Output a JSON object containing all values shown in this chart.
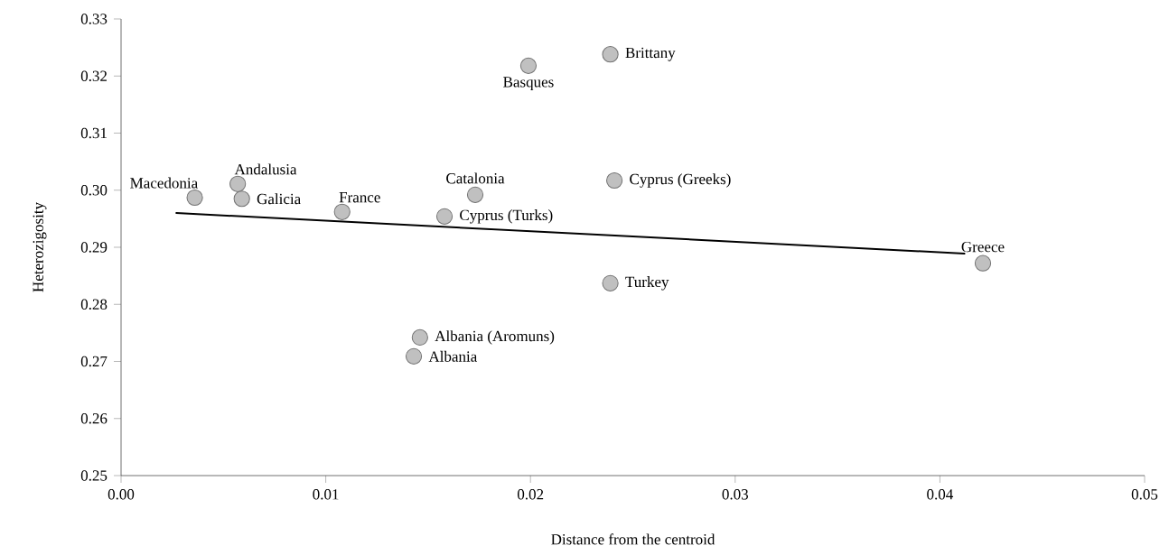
{
  "chart_data": {
    "type": "scatter",
    "xlabel": "Distance from the centroid",
    "ylabel": "Heterozigosity",
    "xlim": [
      0,
      0.05
    ],
    "ylim": [
      0.25,
      0.33
    ],
    "xticks": [
      {
        "value": 0,
        "label": "0.00"
      },
      {
        "value": 0.01,
        "label": "0.01"
      },
      {
        "value": 0.02,
        "label": "0.02"
      },
      {
        "value": 0.03,
        "label": "0.03"
      },
      {
        "value": 0.04,
        "label": "0.04"
      },
      {
        "value": 0.05,
        "label": "0.05"
      }
    ],
    "yticks": [
      {
        "value": 0.25,
        "label": "0.25"
      },
      {
        "value": 0.26,
        "label": "0.26"
      },
      {
        "value": 0.27,
        "label": "0.27"
      },
      {
        "value": 0.28,
        "label": "0.28"
      },
      {
        "value": 0.29,
        "label": "0.29"
      },
      {
        "value": 0.3,
        "label": "0.30"
      },
      {
        "value": 0.31,
        "label": "0.31"
      },
      {
        "value": 0.32,
        "label": "0.32"
      },
      {
        "value": 0.33,
        "label": "0.33"
      }
    ],
    "series": [
      {
        "type": "scatter",
        "marker": "circle",
        "color": "#c0c0c0",
        "x": [
          0.0036,
          0.0057,
          0.0059,
          0.0108,
          0.0173,
          0.0158,
          0.0199,
          0.0239,
          0.0241,
          0.0239,
          0.0421,
          0.0146,
          0.0143
        ],
        "values": [
          0.2987,
          0.3011,
          0.2985,
          0.2962,
          0.2992,
          0.2954,
          0.3218,
          0.3238,
          0.3017,
          0.2837,
          0.2872,
          0.2742,
          0.2709
        ]
      },
      {
        "type": "line",
        "marker": "none",
        "color": "#000000",
        "x": [
          0.0027,
          0.0412
        ],
        "values": [
          0.296,
          0.2889
        ]
      }
    ],
    "annotations": [
      {
        "text": "Macedonia",
        "x": 0.0036,
        "y": 0.2987
      },
      {
        "text": "Andalusia",
        "x": 0.0057,
        "y": 0.3011
      },
      {
        "text": "Galicia",
        "x": 0.0059,
        "y": 0.2985
      },
      {
        "text": "France",
        "x": 0.0108,
        "y": 0.2962
      },
      {
        "text": "Catalonia",
        "x": 0.0173,
        "y": 0.2992
      },
      {
        "text": "Cyprus (Turks)",
        "x": 0.0158,
        "y": 0.2954
      },
      {
        "text": "Basques",
        "x": 0.0199,
        "y": 0.3218
      },
      {
        "text": "Brittany",
        "x": 0.0239,
        "y": 0.3238
      },
      {
        "text": "Cyprus (Greeks)",
        "x": 0.0241,
        "y": 0.3017
      },
      {
        "text": "Turkey",
        "x": 0.0239,
        "y": 0.2837
      },
      {
        "text": "Greece",
        "x": 0.0421,
        "y": 0.2872
      },
      {
        "text": "Albania (Aromuns)",
        "x": 0.0146,
        "y": 0.2742
      },
      {
        "text": "Albania",
        "x": 0.0143,
        "y": 0.2709
      }
    ]
  }
}
